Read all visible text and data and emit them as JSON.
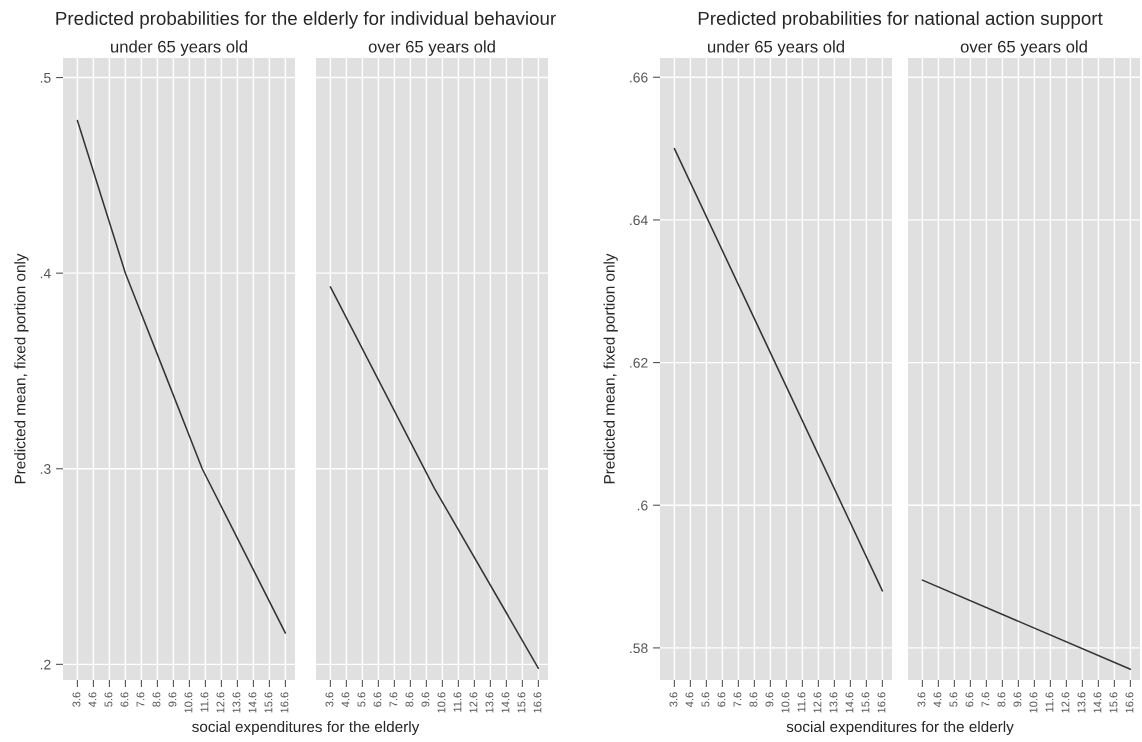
{
  "chart_data": [
    {
      "type": "line",
      "title": "Predicted probabilities for the elderly for individual behaviour",
      "subtitle": "under 65 years old",
      "xlabel": "social expenditures for the elderly",
      "ylabel": "Predicted mean, fixed portion only",
      "series": [
        {
          "color": "#333333",
          "x": [
            3.6,
            6.6,
            9.1,
            11.4,
            16.6
          ],
          "values": [
            0.478,
            0.4,
            0.348,
            0.3,
            0.216
          ]
        }
      ],
      "xlim": [
        2.7,
        17.2
      ],
      "xticks": [
        3.6,
        4.6,
        5.6,
        6.6,
        7.6,
        8.6,
        9.6,
        10.6,
        11.6,
        12.6,
        13.6,
        14.6,
        15.6,
        16.6
      ],
      "ylim": [
        0.192,
        0.51
      ],
      "yticks": [
        {
          "value": 0.2,
          "label": ".2"
        },
        {
          "value": 0.3,
          "label": ".3"
        },
        {
          "value": 0.4,
          "label": ".4"
        },
        {
          "value": 0.5,
          "label": ".5"
        }
      ],
      "grid": true
    },
    {
      "type": "line",
      "subtitle": "over 65 years old",
      "series": [
        {
          "color": "#333333",
          "x": [
            3.6,
            10.1,
            16.6
          ],
          "values": [
            0.393,
            0.29,
            0.198
          ]
        }
      ],
      "xlim": [
        2.7,
        17.2
      ],
      "xticks": [
        3.6,
        4.6,
        5.6,
        6.6,
        7.6,
        8.6,
        9.6,
        10.6,
        11.6,
        12.6,
        13.6,
        14.6,
        15.6,
        16.6
      ],
      "ylim": [
        0.192,
        0.51
      ],
      "yticks": [
        {
          "value": 0.2,
          "label": null
        },
        {
          "value": 0.3,
          "label": null
        },
        {
          "value": 0.4,
          "label": null
        },
        {
          "value": 0.5,
          "label": null
        }
      ],
      "grid": true,
      "tick_labels": "x"
    },
    {
      "type": "line",
      "title": "Predicted probabilities for national action support",
      "subtitle": "under 65 years old",
      "xlabel": "social expenditures for the elderly",
      "ylabel": "Predicted mean, fixed portion only",
      "series": [
        {
          "color": "#333333",
          "x": [
            3.6,
            16.6
          ],
          "values": [
            0.65,
            0.588
          ]
        }
      ],
      "xlim": [
        2.7,
        17.2
      ],
      "xticks": [
        3.6,
        4.6,
        5.6,
        6.6,
        7.6,
        8.6,
        9.6,
        10.6,
        11.6,
        12.6,
        13.6,
        14.6,
        15.6,
        16.6
      ],
      "ylim": [
        0.5755,
        0.6627
      ],
      "yticks": [
        {
          "value": 0.58,
          "label": ".58"
        },
        {
          "value": 0.6,
          "label": ".6"
        },
        {
          "value": 0.62,
          "label": ".62"
        },
        {
          "value": 0.64,
          "label": ".64"
        },
        {
          "value": 0.66,
          "label": ".66"
        }
      ],
      "grid": true
    },
    {
      "type": "line",
      "subtitle": "over 65 years old",
      "series": [
        {
          "color": "#333333",
          "x": [
            3.6,
            16.6
          ],
          "values": [
            0.5895,
            0.577
          ]
        }
      ],
      "xlim": [
        2.7,
        17.2
      ],
      "xticks": [
        3.6,
        4.6,
        5.6,
        6.6,
        7.6,
        8.6,
        9.6,
        10.6,
        11.6,
        12.6,
        13.6,
        14.6,
        15.6,
        16.6
      ],
      "ylim": [
        0.5755,
        0.6627
      ],
      "yticks": [
        {
          "value": 0.58,
          "label": null
        },
        {
          "value": 0.6,
          "label": null
        },
        {
          "value": 0.62,
          "label": null
        },
        {
          "value": 0.64,
          "label": null
        },
        {
          "value": 0.66,
          "label": null
        }
      ],
      "grid": true,
      "tick_labels": "x"
    }
  ]
}
